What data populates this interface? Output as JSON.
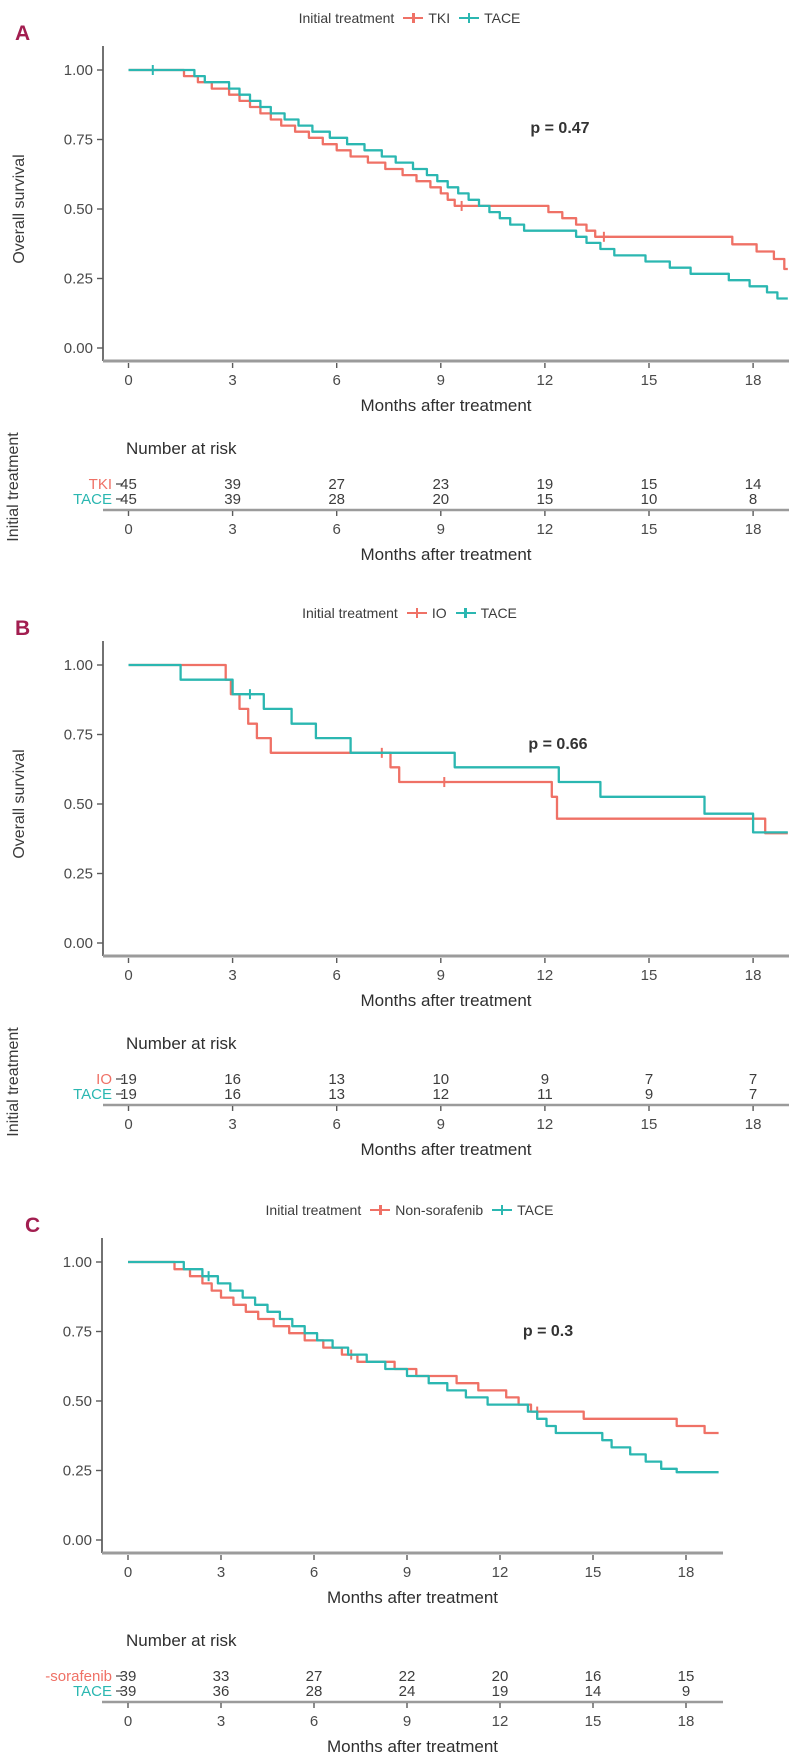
{
  "colors": {
    "series_red": "#EF7166",
    "series_teal": "#2BB7B1",
    "panel_letter": "#A21E50",
    "axis_dark": "#5A5A5A",
    "axis_light": "#9B9B9B",
    "text_dark": "#333333",
    "tick_text": "#4A4A4A"
  },
  "chart_data": [
    {
      "type": "line",
      "subtype": "kaplan-meier-step",
      "panel_label": "A",
      "legend_title": "Initial treatment",
      "legend_position": "top",
      "p_value": "p = 0.47",
      "xlabel": "Months after treatment",
      "ylabel": "Overall survival",
      "xlim": [
        0,
        19
      ],
      "ylim": [
        0,
        1
      ],
      "x_ticks": [
        0,
        3,
        6,
        9,
        12,
        15,
        18
      ],
      "y_ticks": [
        "1.00",
        "0.75",
        "0.50",
        "0.25",
        "0.00"
      ],
      "series": [
        {
          "name": "TKI",
          "color": "#EF7166",
          "steps": [
            [
              0,
              1
            ],
            [
              1.6,
              0.978
            ],
            [
              2.0,
              0.956
            ],
            [
              2.4,
              0.933
            ],
            [
              2.9,
              0.911
            ],
            [
              3.2,
              0.889
            ],
            [
              3.5,
              0.867
            ],
            [
              3.8,
              0.844
            ],
            [
              4.1,
              0.822
            ],
            [
              4.4,
              0.8
            ],
            [
              4.8,
              0.778
            ],
            [
              5.2,
              0.756
            ],
            [
              5.6,
              0.733
            ],
            [
              6.0,
              0.711
            ],
            [
              6.4,
              0.689
            ],
            [
              6.9,
              0.667
            ],
            [
              7.4,
              0.644
            ],
            [
              7.9,
              0.622
            ],
            [
              8.3,
              0.6
            ],
            [
              8.7,
              0.578
            ],
            [
              9.0,
              0.556
            ],
            [
              9.2,
              0.533
            ],
            [
              9.4,
              0.511
            ],
            [
              12.1,
              0.489
            ],
            [
              12.5,
              0.467
            ],
            [
              12.9,
              0.444
            ],
            [
              13.2,
              0.422
            ],
            [
              13.45,
              0.4
            ],
            [
              17.4,
              0.373
            ],
            [
              18.1,
              0.347
            ],
            [
              18.6,
              0.32
            ],
            [
              18.9,
              0.284
            ]
          ],
          "censor_marks": [
            [
              9.6,
              0.511
            ],
            [
              13.7,
              0.4
            ]
          ]
        },
        {
          "name": "TACE",
          "color": "#2BB7B1",
          "steps": [
            [
              0,
              1
            ],
            [
              1.9,
              0.978
            ],
            [
              2.2,
              0.956
            ],
            [
              2.9,
              0.933
            ],
            [
              3.2,
              0.911
            ],
            [
              3.5,
              0.889
            ],
            [
              3.8,
              0.867
            ],
            [
              4.1,
              0.844
            ],
            [
              4.5,
              0.822
            ],
            [
              4.9,
              0.8
            ],
            [
              5.3,
              0.778
            ],
            [
              5.8,
              0.756
            ],
            [
              6.3,
              0.733
            ],
            [
              6.8,
              0.711
            ],
            [
              7.3,
              0.689
            ],
            [
              7.7,
              0.667
            ],
            [
              8.2,
              0.644
            ],
            [
              8.6,
              0.622
            ],
            [
              8.9,
              0.6
            ],
            [
              9.2,
              0.578
            ],
            [
              9.5,
              0.556
            ],
            [
              9.8,
              0.533
            ],
            [
              10.1,
              0.511
            ],
            [
              10.4,
              0.489
            ],
            [
              10.7,
              0.467
            ],
            [
              11.0,
              0.444
            ],
            [
              11.4,
              0.422
            ],
            [
              12.9,
              0.4
            ],
            [
              13.2,
              0.378
            ],
            [
              13.6,
              0.356
            ],
            [
              14.0,
              0.333
            ],
            [
              14.9,
              0.311
            ],
            [
              15.6,
              0.289
            ],
            [
              16.2,
              0.267
            ],
            [
              17.3,
              0.244
            ],
            [
              17.9,
              0.222
            ],
            [
              18.4,
              0.2
            ],
            [
              18.7,
              0.178
            ]
          ],
          "censor_marks": [
            [
              0.7,
              1.0
            ]
          ]
        }
      ],
      "risk_table": {
        "title": "Number at risk",
        "ylabel": "Initial treatment",
        "xlabel": "Months after treatment",
        "x_ticks": [
          0,
          3,
          6,
          9,
          12,
          15,
          18
        ],
        "rows": [
          {
            "label": "TKI",
            "counts": [
              45,
              39,
              27,
              23,
              19,
              15,
              14
            ]
          },
          {
            "label": "TACE",
            "counts": [
              45,
              39,
              28,
              20,
              15,
              10,
              8
            ]
          }
        ]
      }
    },
    {
      "type": "line",
      "subtype": "kaplan-meier-step",
      "panel_label": "B",
      "legend_title": "Initial treatment",
      "legend_position": "top",
      "p_value": "p = 0.66",
      "xlabel": "Months after treatment",
      "ylabel": "Overall survival",
      "xlim": [
        0,
        19
      ],
      "ylim": [
        0,
        1
      ],
      "x_ticks": [
        0,
        3,
        6,
        9,
        12,
        15,
        18
      ],
      "y_ticks": [
        "1.00",
        "0.75",
        "0.50",
        "0.25",
        "0.00"
      ],
      "series": [
        {
          "name": "IO",
          "color": "#EF7166",
          "steps": [
            [
              0,
              1
            ],
            [
              2.8,
              0.947
            ],
            [
              2.95,
              0.895
            ],
            [
              3.2,
              0.842
            ],
            [
              3.45,
              0.789
            ],
            [
              3.7,
              0.737
            ],
            [
              4.1,
              0.684
            ],
            [
              7.55,
              0.632
            ],
            [
              7.8,
              0.579
            ],
            [
              12.2,
              0.526
            ],
            [
              12.35,
              0.447
            ],
            [
              18.35,
              0.395
            ]
          ],
          "censor_marks": [
            [
              7.3,
              0.684
            ],
            [
              9.1,
              0.579
            ]
          ]
        },
        {
          "name": "TACE",
          "color": "#2BB7B1",
          "steps": [
            [
              0,
              1
            ],
            [
              1.5,
              0.947
            ],
            [
              3.0,
              0.895
            ],
            [
              3.9,
              0.842
            ],
            [
              4.7,
              0.789
            ],
            [
              5.4,
              0.737
            ],
            [
              6.4,
              0.684
            ],
            [
              9.4,
              0.632
            ],
            [
              12.4,
              0.579
            ],
            [
              13.6,
              0.526
            ],
            [
              16.6,
              0.465
            ],
            [
              18.0,
              0.398
            ]
          ],
          "censor_marks": [
            [
              3.5,
              0.895
            ]
          ]
        }
      ],
      "risk_table": {
        "title": "Number at risk",
        "ylabel": "Initial treatment",
        "xlabel": "Months after treatment",
        "x_ticks": [
          0,
          3,
          6,
          9,
          12,
          15,
          18
        ],
        "rows": [
          {
            "label": "IO",
            "counts": [
              19,
              16,
              13,
              10,
              9,
              7,
              7
            ]
          },
          {
            "label": "TACE",
            "counts": [
              19,
              16,
              13,
              12,
              11,
              9,
              7
            ]
          }
        ]
      }
    },
    {
      "type": "line",
      "subtype": "kaplan-meier-step",
      "panel_label": "C",
      "legend_title": "Initial treatment",
      "legend_position": "top",
      "p_value": "p = 0.3",
      "xlabel": "Months after treatment",
      "ylabel": "",
      "xlim": [
        0,
        19
      ],
      "ylim": [
        0,
        1
      ],
      "x_ticks": [
        0,
        3,
        6,
        9,
        12,
        15,
        18
      ],
      "y_ticks": [
        "1.00",
        "0.75",
        "0.50",
        "0.25",
        "0.00"
      ],
      "series": [
        {
          "name": "Non-sorafenib",
          "color": "#EF7166",
          "steps": [
            [
              0,
              1
            ],
            [
              1.5,
              0.974
            ],
            [
              2.0,
              0.949
            ],
            [
              2.4,
              0.923
            ],
            [
              2.7,
              0.897
            ],
            [
              3.0,
              0.872
            ],
            [
              3.4,
              0.846
            ],
            [
              3.8,
              0.821
            ],
            [
              4.2,
              0.795
            ],
            [
              4.7,
              0.769
            ],
            [
              5.2,
              0.744
            ],
            [
              5.7,
              0.718
            ],
            [
              6.3,
              0.692
            ],
            [
              6.9,
              0.667
            ],
            [
              7.4,
              0.641
            ],
            [
              8.6,
              0.615
            ],
            [
              9.3,
              0.59
            ],
            [
              10.6,
              0.564
            ],
            [
              11.3,
              0.538
            ],
            [
              12.2,
              0.513
            ],
            [
              12.6,
              0.487
            ],
            [
              13.0,
              0.462
            ],
            [
              14.7,
              0.436
            ],
            [
              17.7,
              0.41
            ],
            [
              18.6,
              0.385
            ]
          ],
          "censor_marks": [
            [
              7.2,
              0.667
            ],
            [
              13.2,
              0.462
            ]
          ]
        },
        {
          "name": "TACE",
          "color": "#2BB7B1",
          "steps": [
            [
              0,
              1
            ],
            [
              1.8,
              0.974
            ],
            [
              2.4,
              0.949
            ],
            [
              2.9,
              0.923
            ],
            [
              3.3,
              0.897
            ],
            [
              3.7,
              0.872
            ],
            [
              4.1,
              0.846
            ],
            [
              4.5,
              0.821
            ],
            [
              4.9,
              0.795
            ],
            [
              5.3,
              0.769
            ],
            [
              5.7,
              0.744
            ],
            [
              6.1,
              0.718
            ],
            [
              6.6,
              0.692
            ],
            [
              7.1,
              0.667
            ],
            [
              7.7,
              0.641
            ],
            [
              8.3,
              0.615
            ],
            [
              9.0,
              0.59
            ],
            [
              9.7,
              0.564
            ],
            [
              10.3,
              0.538
            ],
            [
              10.9,
              0.513
            ],
            [
              11.6,
              0.487
            ],
            [
              12.9,
              0.462
            ],
            [
              13.2,
              0.436
            ],
            [
              13.5,
              0.41
            ],
            [
              13.8,
              0.385
            ],
            [
              15.3,
              0.359
            ],
            [
              15.6,
              0.333
            ],
            [
              16.2,
              0.308
            ],
            [
              16.7,
              0.282
            ],
            [
              17.2,
              0.256
            ],
            [
              17.7,
              0.244
            ]
          ],
          "censor_marks": [
            [
              2.6,
              0.949
            ]
          ]
        }
      ],
      "risk_table": {
        "title": "Number at risk",
        "ylabel": "",
        "xlabel": "Months after treatment",
        "x_ticks": [
          0,
          3,
          6,
          9,
          12,
          15,
          18
        ],
        "rows": [
          {
            "label": "-sorafenib",
            "counts": [
              39,
              33,
              27,
              22,
              20,
              16,
              15
            ]
          },
          {
            "label": "TACE",
            "counts": [
              39,
              36,
              28,
              24,
              19,
              14,
              9
            ]
          }
        ]
      }
    }
  ]
}
